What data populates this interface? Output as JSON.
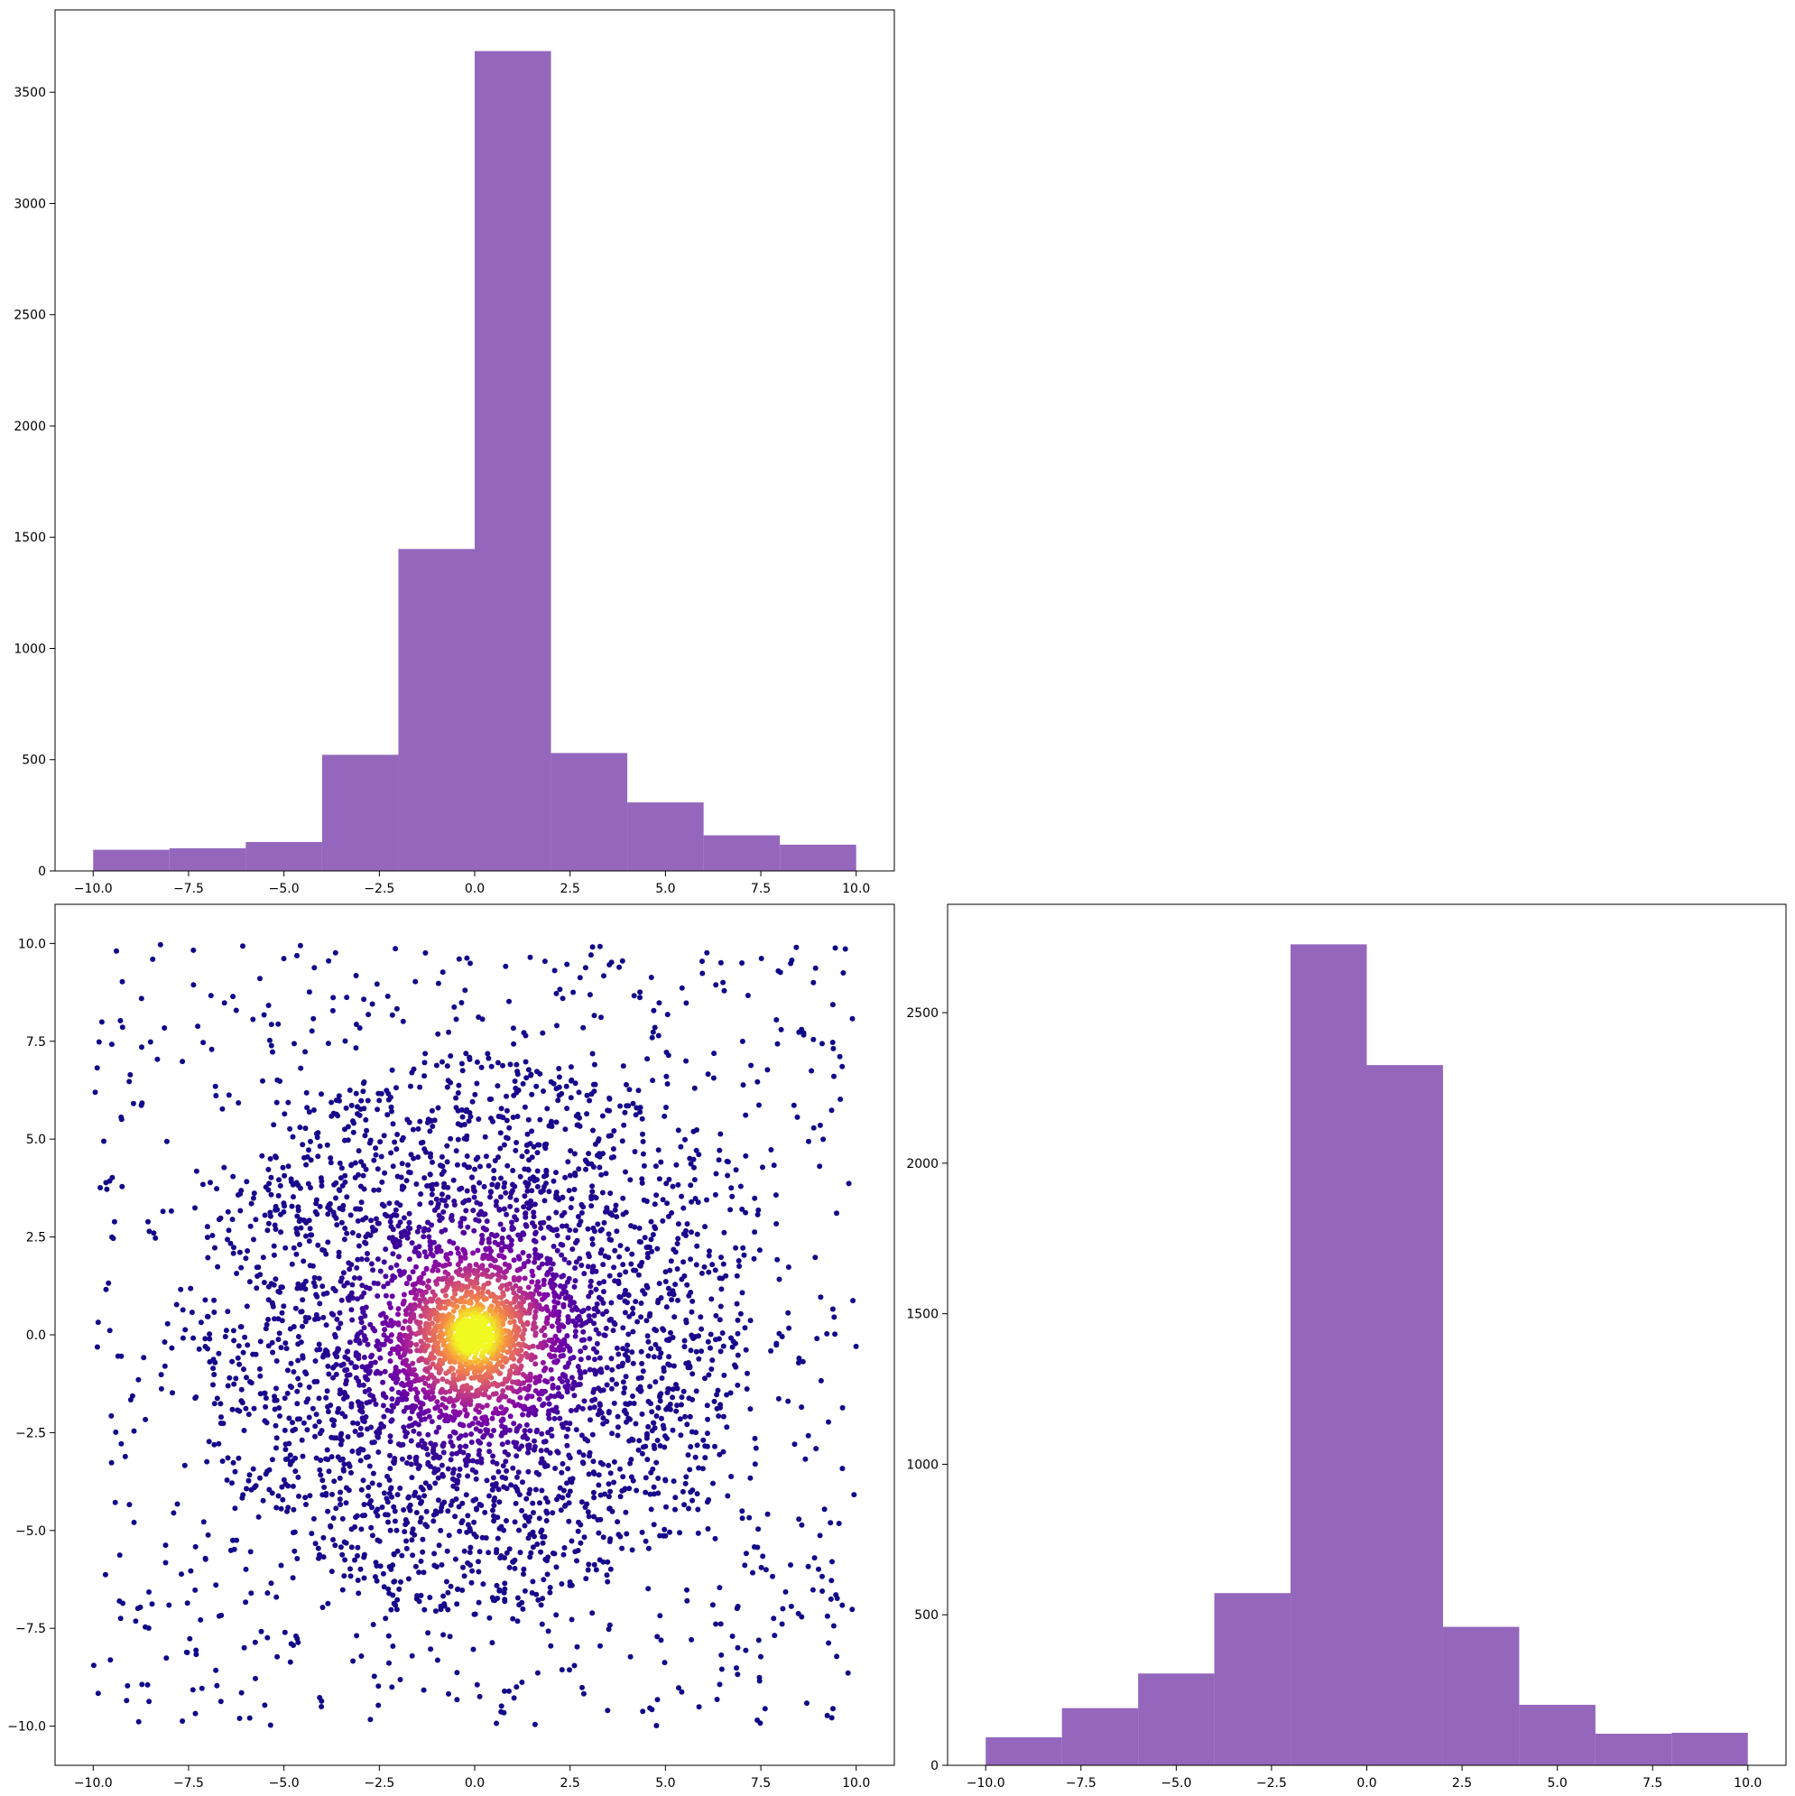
{
  "colors": {
    "bar_fill": "#9467bd",
    "axes_edge": "#000000",
    "colormap": "plasma"
  },
  "chart_data": [
    {
      "id": "top-left-histogram",
      "type": "bar",
      "title": "",
      "xlabel": "",
      "ylabel": "",
      "bin_edges": [
        -10,
        -8,
        -6,
        -4,
        -2,
        0,
        2,
        4,
        6,
        8,
        10
      ],
      "values": [
        95,
        102,
        130,
        522,
        1447,
        3685,
        530,
        308,
        160,
        118
      ],
      "xlim": [
        -11,
        11
      ],
      "ylim": [
        0,
        3870
      ],
      "xticks": [
        -10.0,
        -7.5,
        -5.0,
        -2.5,
        0.0,
        2.5,
        5.0,
        7.5,
        10.0
      ],
      "xtick_labels": [
        "−10.0",
        "−7.5",
        "−5.0",
        "−2.5",
        "0.0",
        "2.5",
        "5.0",
        "7.5",
        "10.0"
      ],
      "yticks": [
        0,
        500,
        1000,
        1500,
        2000,
        2500,
        3000,
        3500
      ],
      "ytick_labels": [
        "0",
        "500",
        "1000",
        "1500",
        "2000",
        "2500",
        "3000",
        "3500"
      ],
      "grid": false
    },
    {
      "id": "bottom-left-scatter",
      "type": "scatter",
      "title": "",
      "xlabel": "",
      "ylabel": "",
      "description_of_data": "about 5000 points: dense cluster around (0, 0) spreading to about radius 7, plus uniformly scattered points over [-10, 10] x [-10, 10]; point color encodes local density (plasma colormap, yellow at the center)",
      "generator": {
        "n_points": 5000,
        "cluster_center": [
          0,
          0
        ],
        "xlim_data": [
          -10,
          10
        ],
        "ylim_data": [
          -10,
          10
        ]
      },
      "xlim": [
        -11,
        11
      ],
      "ylim": [
        -11,
        11
      ],
      "xticks": [
        -10.0,
        -7.5,
        -5.0,
        -2.5,
        0.0,
        2.5,
        5.0,
        7.5,
        10.0
      ],
      "xtick_labels": [
        "−10.0",
        "−7.5",
        "−5.0",
        "−2.5",
        "0.0",
        "2.5",
        "5.0",
        "7.5",
        "10.0"
      ],
      "yticks": [
        -10.0,
        -7.5,
        -5.0,
        -2.5,
        0.0,
        2.5,
        5.0,
        7.5,
        10.0
      ],
      "ytick_labels": [
        "−10.0",
        "−7.5",
        "−5.0",
        "−2.5",
        "0.0",
        "2.5",
        "5.0",
        "7.5",
        "10.0"
      ],
      "grid": false
    },
    {
      "id": "bottom-right-histogram",
      "type": "bar",
      "title": "",
      "xlabel": "",
      "ylabel": "",
      "bin_edges": [
        -10,
        -8,
        -6,
        -4,
        -2,
        0,
        2,
        4,
        6,
        8,
        10
      ],
      "values": [
        93,
        190,
        305,
        572,
        2727,
        2326,
        460,
        201,
        105,
        108
      ],
      "xlim": [
        -11,
        11
      ],
      "ylim": [
        0,
        2860
      ],
      "xticks": [
        -10.0,
        -7.5,
        -5.0,
        -2.5,
        0.0,
        2.5,
        5.0,
        7.5,
        10.0
      ],
      "xtick_labels": [
        "−10.0",
        "−7.5",
        "−5.0",
        "−2.5",
        "0.0",
        "2.5",
        "5.0",
        "7.5",
        "10.0"
      ],
      "yticks": [
        0,
        500,
        1000,
        1500,
        2000,
        2500
      ],
      "ytick_labels": [
        "0",
        "500",
        "1000",
        "1500",
        "2000",
        "2500"
      ],
      "grid": false
    }
  ]
}
